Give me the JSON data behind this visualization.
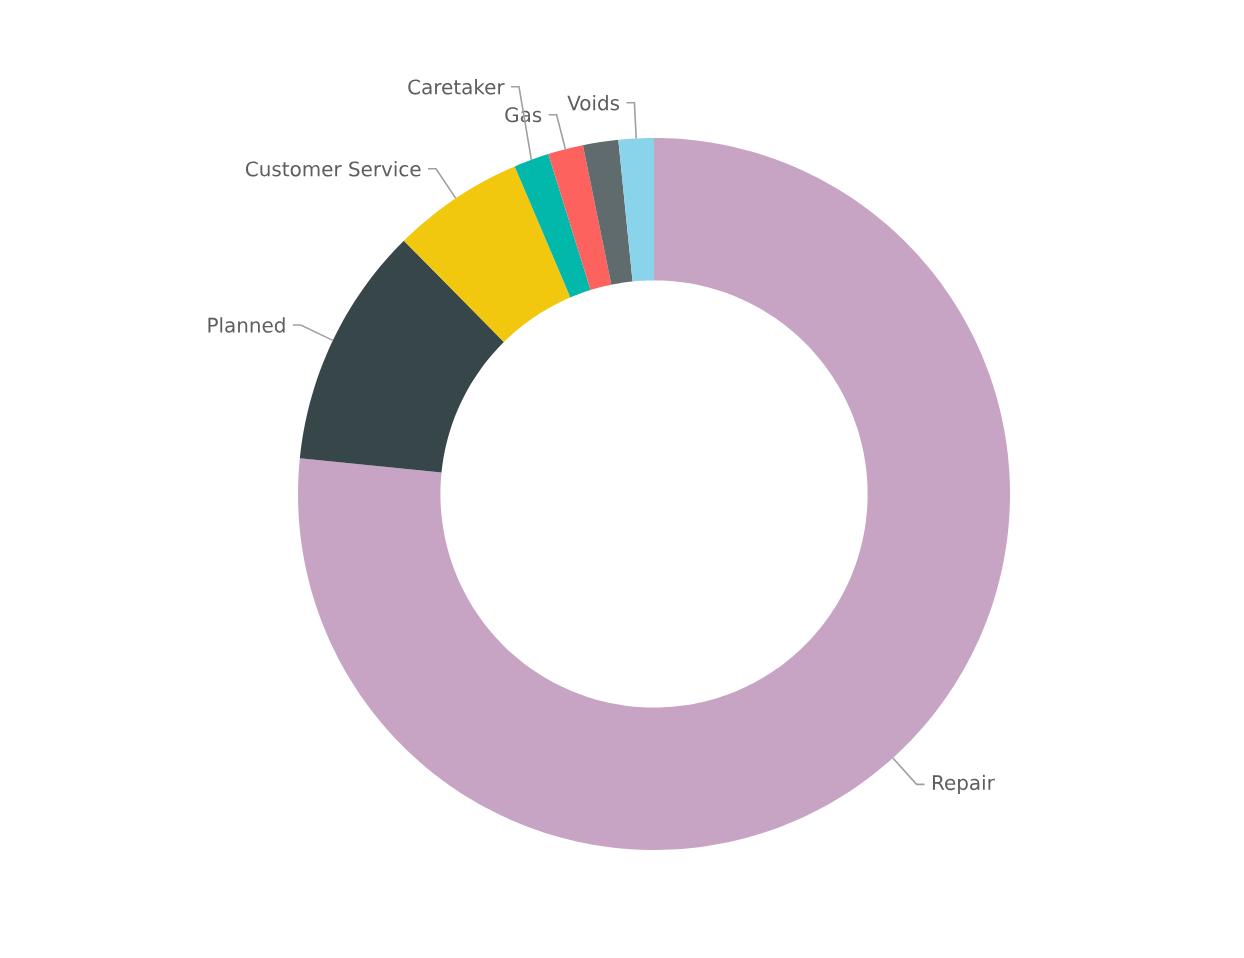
{
  "chart_data": {
    "type": "donut",
    "categories": [
      "Repair",
      "Planned",
      "Customer Service",
      "Caretaker",
      "Gas",
      null,
      "Voids"
    ],
    "values": [
      76.6,
      11,
      6,
      1.6,
      1.6,
      1.6,
      1.6
    ],
    "colors": [
      "#c8a4c4",
      "#374649",
      "#f2c80f",
      "#01b8aa",
      "#fd625e",
      "#5f6b6d",
      "#8ad4eb"
    ]
  }
}
